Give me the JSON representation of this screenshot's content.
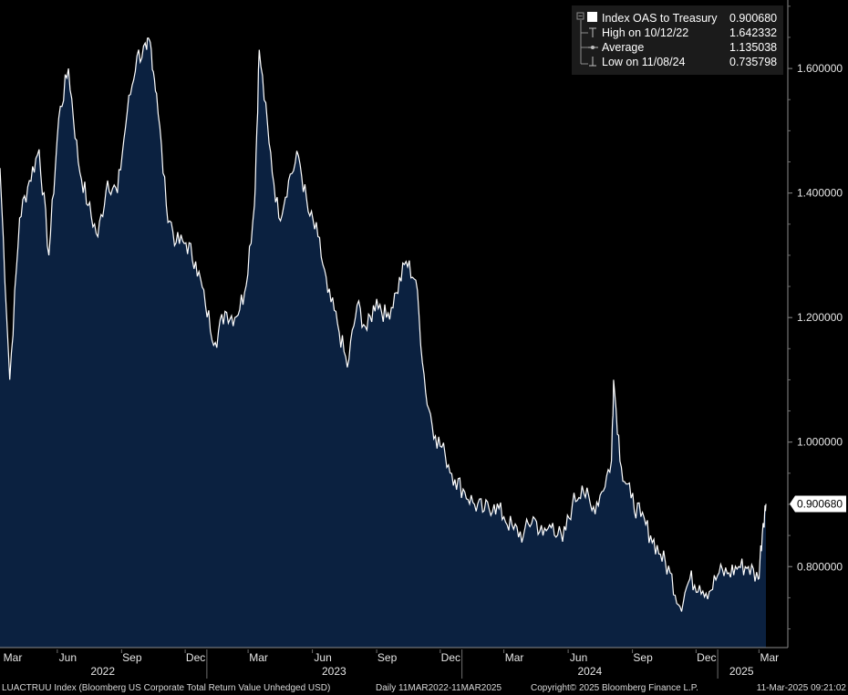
{
  "legend": {
    "series_label": "Index OAS to Treasury",
    "series_value": "0.900680",
    "high_label": "High on 10/12/22",
    "high_value": "1.642332",
    "average_label": "Average",
    "average_value": "1.135038",
    "low_label": "Low on 11/08/24",
    "low_value": "0.735798"
  },
  "last_value_tag": "0.900680",
  "footer": {
    "security": "LUACTRUU Index (Bloomberg US Corporate Total Return Value Unhedged USD)",
    "period": "Daily 11MAR2022-11MAR2025",
    "copyright": "Copyright© 2025 Bloomberg Finance L.P.",
    "timestamp": "11-Mar-2025 09:21:02"
  },
  "colors": {
    "background": "#000000",
    "area_fill": "#0b2140",
    "line": "#ffffff",
    "legend_bg": "#1b1b1b",
    "axis": "#8c8c8c",
    "text": "#e6e6e6"
  },
  "chart_data": {
    "type": "area",
    "series": [
      {
        "name": "Index OAS to Treasury",
        "x": [
          "2022-03-11",
          "2022-03-25",
          "2022-04-08",
          "2022-04-22",
          "2022-05-06",
          "2022-05-20",
          "2022-06-03",
          "2022-06-17",
          "2022-07-01",
          "2022-07-15",
          "2022-07-29",
          "2022-08-12",
          "2022-08-26",
          "2022-09-09",
          "2022-09-23",
          "2022-10-07",
          "2022-10-12",
          "2022-10-21",
          "2022-11-04",
          "2022-11-18",
          "2022-12-02",
          "2022-12-16",
          "2022-12-30",
          "2023-01-13",
          "2023-01-27",
          "2023-02-10",
          "2023-02-24",
          "2023-03-10",
          "2023-03-17",
          "2023-03-31",
          "2023-04-14",
          "2023-04-28",
          "2023-05-12",
          "2023-05-26",
          "2023-06-09",
          "2023-06-23",
          "2023-07-07",
          "2023-07-21",
          "2023-08-04",
          "2023-08-18",
          "2023-09-01",
          "2023-09-15",
          "2023-09-29",
          "2023-10-13",
          "2023-10-27",
          "2023-11-10",
          "2023-11-24",
          "2023-12-08",
          "2023-12-22",
          "2024-01-05",
          "2024-01-19",
          "2024-02-02",
          "2024-02-16",
          "2024-03-01",
          "2024-03-15",
          "2024-03-29",
          "2024-04-12",
          "2024-04-26",
          "2024-05-10",
          "2024-05-24",
          "2024-06-07",
          "2024-06-21",
          "2024-07-05",
          "2024-07-19",
          "2024-08-02",
          "2024-08-05",
          "2024-08-16",
          "2024-08-30",
          "2024-09-13",
          "2024-09-27",
          "2024-10-11",
          "2024-10-25",
          "2024-11-08",
          "2024-11-22",
          "2024-12-06",
          "2024-12-20",
          "2025-01-03",
          "2025-01-17",
          "2025-01-31",
          "2025-02-14",
          "2025-02-28",
          "2025-03-07",
          "2025-03-11"
        ],
        "values": [
          1.44,
          1.1,
          1.36,
          1.42,
          1.47,
          1.3,
          1.52,
          1.6,
          1.45,
          1.38,
          1.33,
          1.42,
          1.4,
          1.53,
          1.62,
          1.63,
          1.642,
          1.56,
          1.38,
          1.32,
          1.32,
          1.29,
          1.22,
          1.16,
          1.21,
          1.2,
          1.24,
          1.38,
          1.63,
          1.48,
          1.36,
          1.42,
          1.46,
          1.37,
          1.33,
          1.24,
          1.19,
          1.12,
          1.22,
          1.18,
          1.23,
          1.2,
          1.24,
          1.29,
          1.26,
          1.08,
          1.01,
          0.98,
          0.94,
          0.92,
          0.9,
          0.89,
          0.9,
          0.88,
          0.86,
          0.85,
          0.88,
          0.85,
          0.87,
          0.84,
          0.9,
          0.93,
          0.89,
          0.92,
          0.97,
          1.1,
          0.96,
          0.91,
          0.88,
          0.85,
          0.82,
          0.79,
          0.736,
          0.78,
          0.77,
          0.76,
          0.79,
          0.79,
          0.8,
          0.8,
          0.78,
          0.87,
          0.90068
        ]
      }
    ],
    "yticks": [
      "0.800000",
      "1.000000",
      "1.200000",
      "1.400000",
      "1.600000"
    ],
    "ylim": [
      0.67,
      1.71
    ],
    "xlim": [
      "2022-03-11",
      "2025-03-11"
    ],
    "xticks": [
      "Mar",
      "Jun",
      "Sep",
      "Dec",
      "Mar",
      "Jun",
      "Sep",
      "Dec",
      "Mar",
      "Jun",
      "Sep",
      "Dec",
      "Mar"
    ],
    "year_labels": [
      "2022",
      "2023",
      "2024",
      "2025"
    ],
    "grid": false,
    "legend_placement": "top-right"
  }
}
